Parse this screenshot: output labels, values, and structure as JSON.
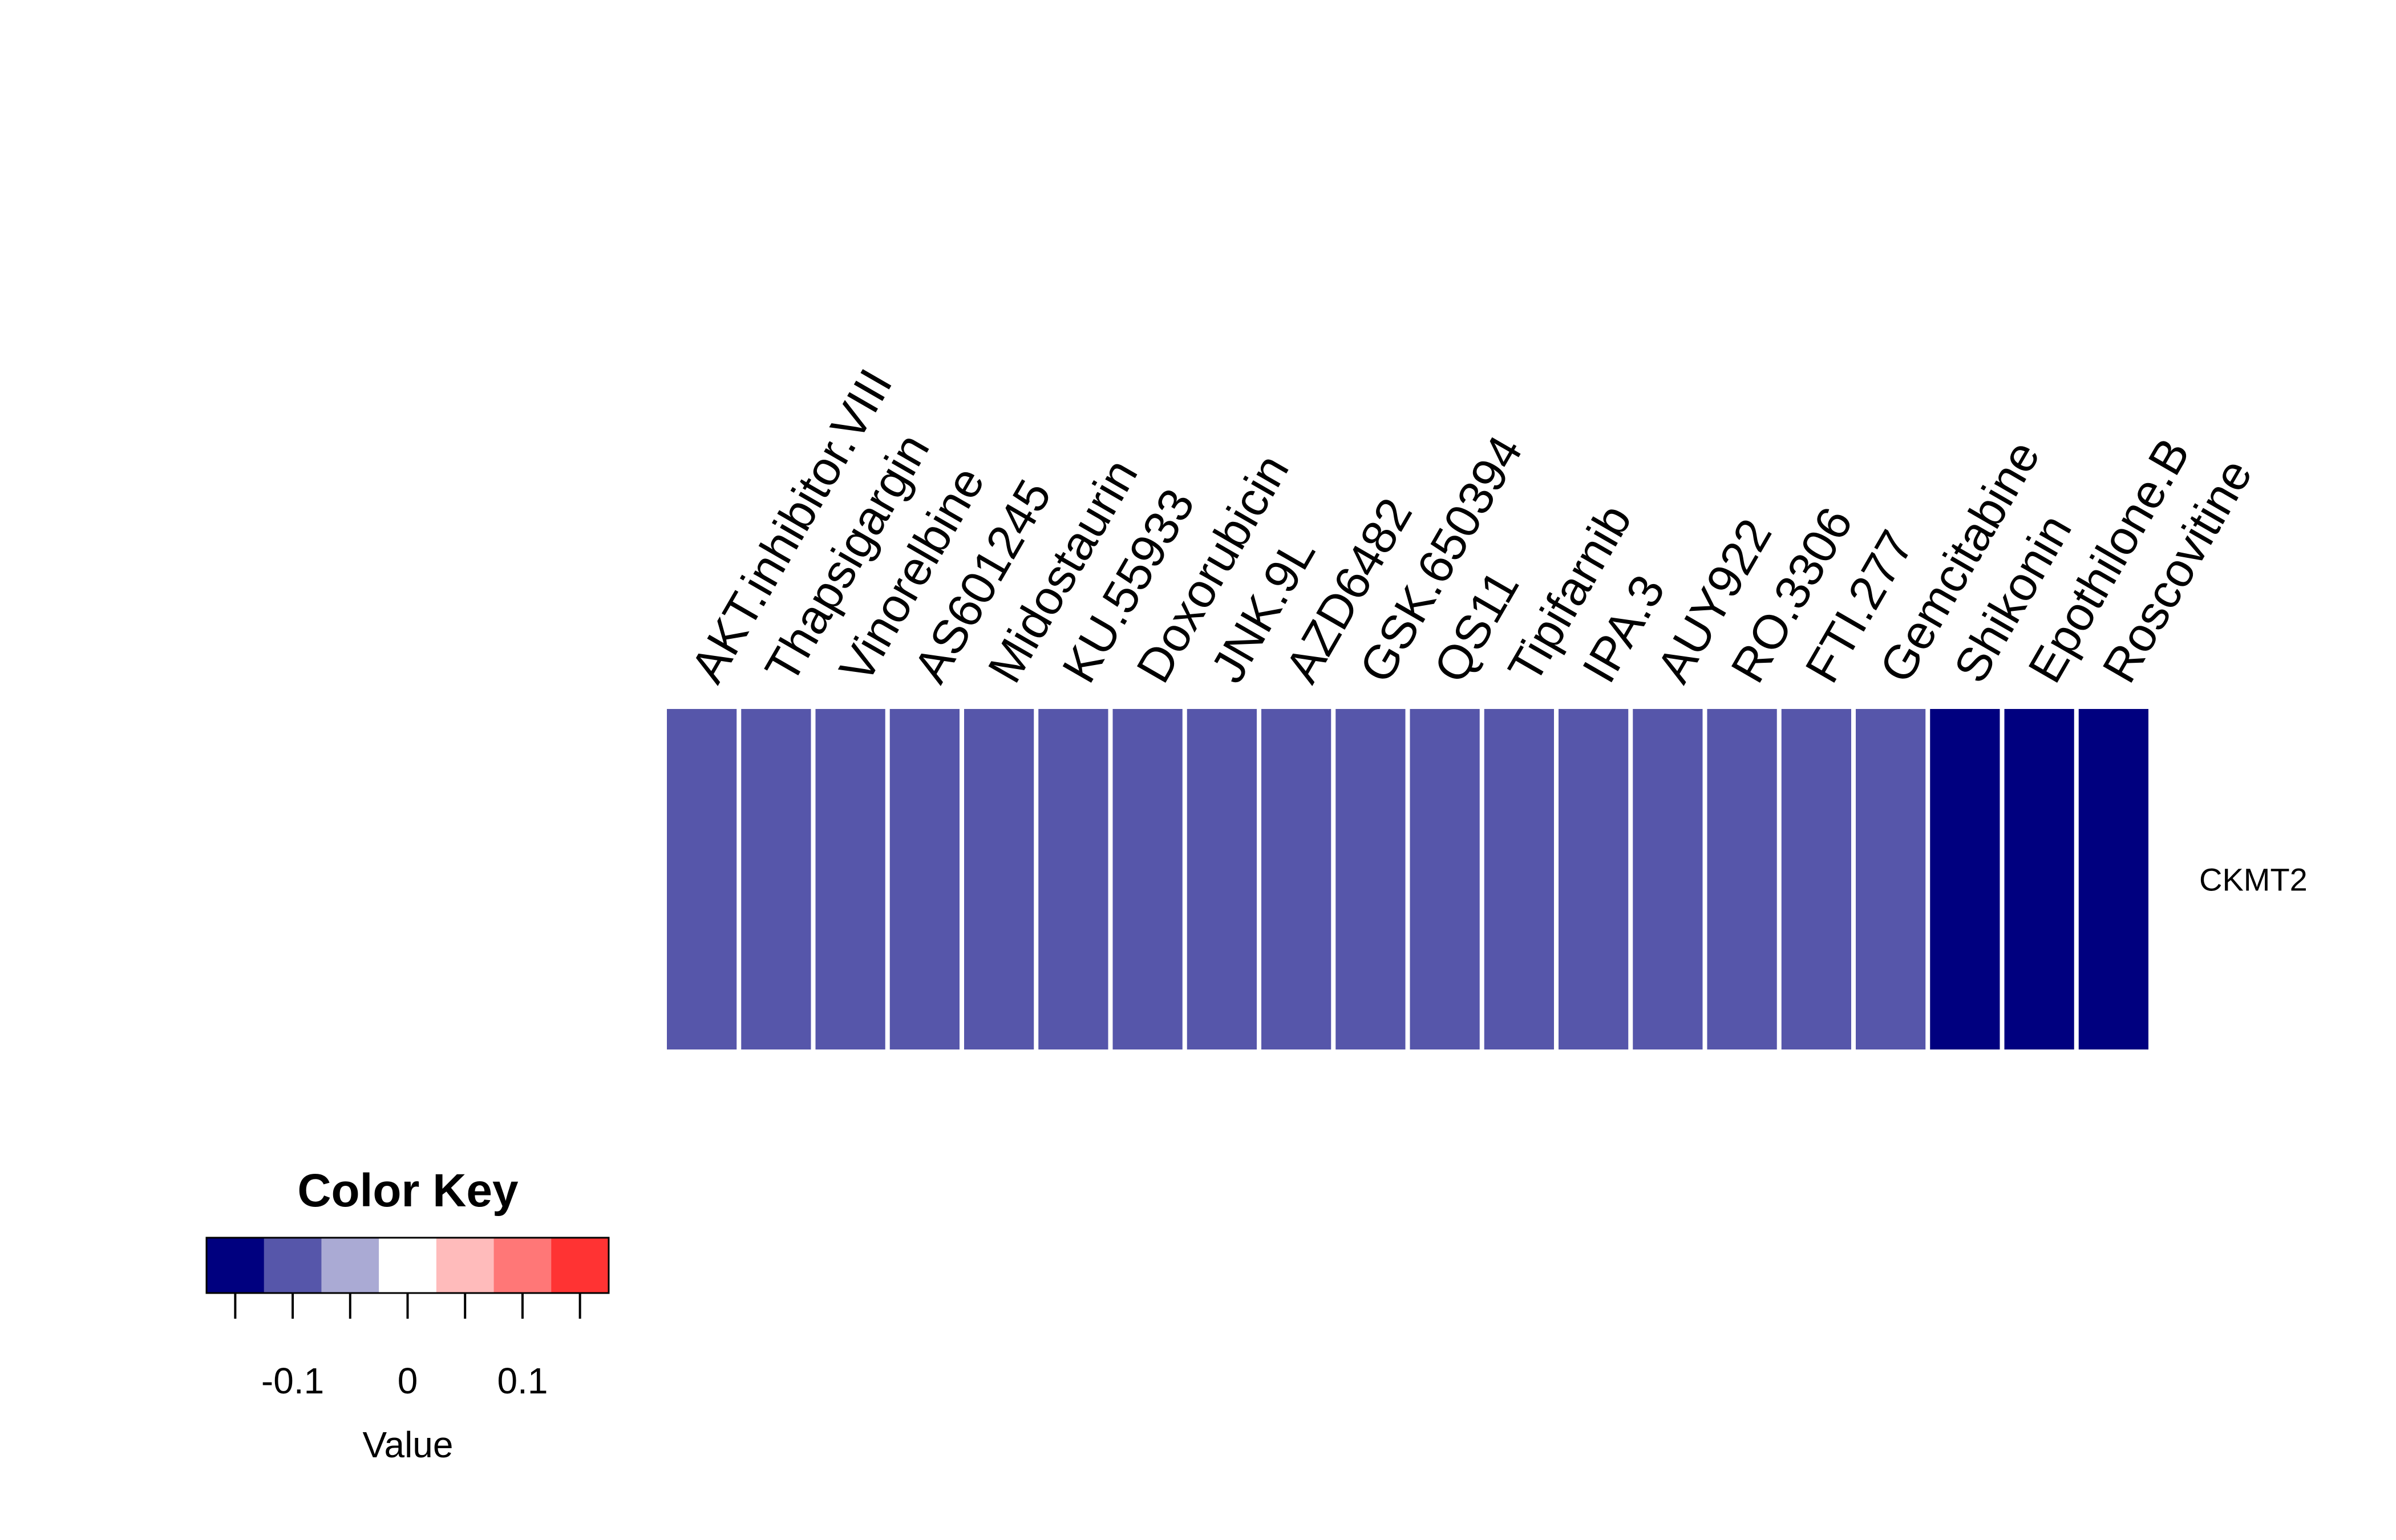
{
  "chart_data": {
    "type": "heatmap",
    "columns": [
      "AKT.inhibitor.VIII",
      "Thapsigargin",
      "Vinorelbine",
      "AS601245",
      "Midostaurin",
      "KU.55933",
      "Doxorubicin",
      "JNK.9L",
      "AZD6482",
      "GSK.650394",
      "QS11",
      "Tipifarnib",
      "IPA.3",
      "AUY922",
      "RO.3306",
      "FTI.277",
      "Gemcitabine",
      "Shikonin",
      "Epothilone.B",
      "Roscovitine"
    ],
    "rows": [
      "CKMT2"
    ],
    "values": [
      [
        -0.1,
        -0.1,
        -0.1,
        -0.1,
        -0.1,
        -0.1,
        -0.1,
        -0.1,
        -0.1,
        -0.1,
        -0.1,
        -0.1,
        -0.1,
        -0.1,
        -0.1,
        -0.1,
        -0.1,
        -0.15,
        -0.15,
        -0.15
      ]
    ],
    "color_key": {
      "title": "Color Key",
      "xlabel": "Value",
      "breaks": [
        -0.175,
        -0.125,
        -0.075,
        -0.025,
        0.025,
        0.075,
        0.125,
        0.175
      ],
      "colors": [
        "#00007f",
        "#5656aa",
        "#aaaad4",
        "#ffffff",
        "#ffbbbb",
        "#ff7777",
        "#ff3333"
      ],
      "ticks": [
        -0.15,
        -0.1,
        -0.05,
        0,
        0.05,
        0.1,
        0.15
      ],
      "tick_labels": [
        {
          "value": -0.1,
          "label": "-0.1"
        },
        {
          "value": 0,
          "label": "0"
        },
        {
          "value": 0.1,
          "label": "0.1"
        }
      ]
    }
  }
}
